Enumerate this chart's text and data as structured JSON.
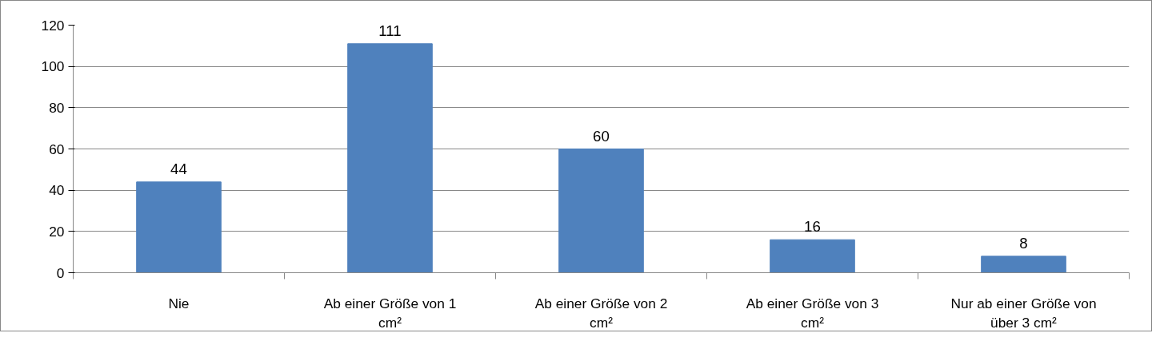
{
  "chart_data": {
    "type": "bar",
    "categories": [
      "Nie",
      "Ab einer Größe von 1 cm²",
      "Ab einer Größe von 2 cm²",
      "Ab einer Größe von 3 cm²",
      "Nur ab einer Größe von über 3 cm²"
    ],
    "values": [
      44,
      111,
      60,
      16,
      8
    ],
    "color": "#4f81bd",
    "ylim": [
      0,
      120
    ],
    "yticks": [
      0,
      20,
      40,
      60,
      80,
      100,
      120
    ],
    "grid": "y",
    "data_labels": true
  }
}
